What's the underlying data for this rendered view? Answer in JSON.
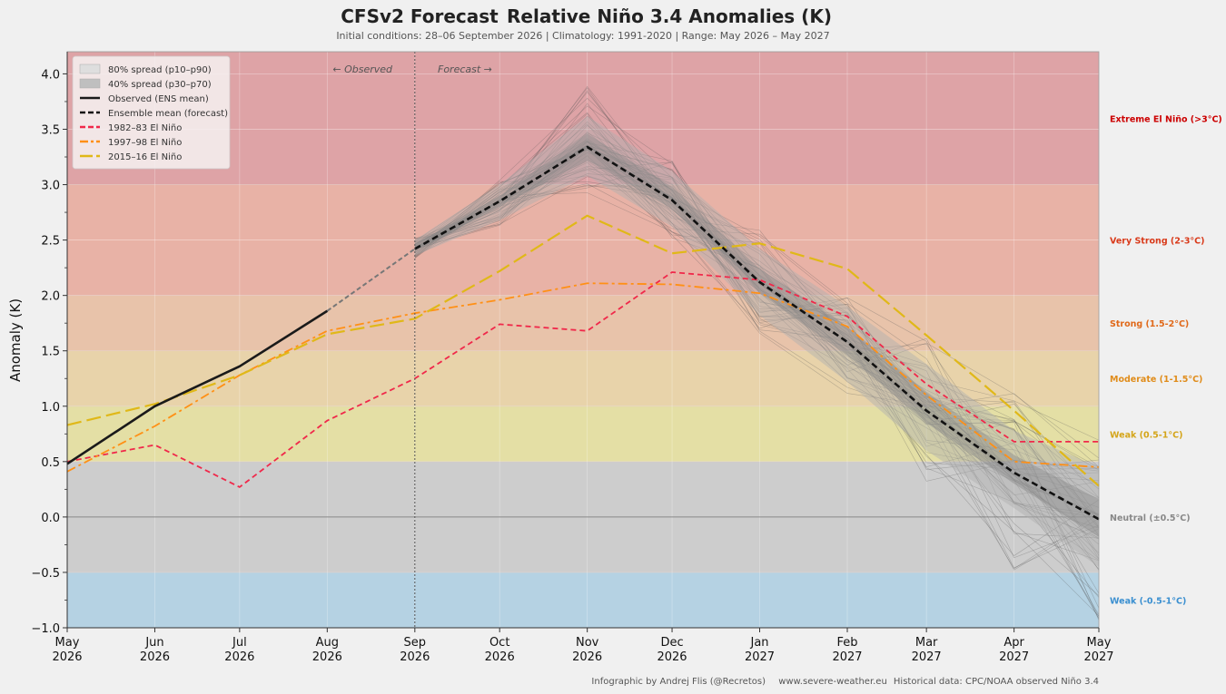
{
  "header": {
    "title_left": "CFSv2 Forecast",
    "title_right": "Relative Niño 3.4 Anomalies (K)",
    "subtitle": "Initial conditions: 28–06 September 2026  |  Climatology: 1991-2020  |  Range: May 2026 – May 2027"
  },
  "footer": {
    "credit": "Infographic by Andrej Flis (@Recretos)",
    "site": "www.severe-weather.eu",
    "source": "Historical data: CPC/NOAA observed Niño 3.4"
  },
  "annotations": {
    "observed": "← Observed",
    "forecast": "Forecast →"
  },
  "chart_data": {
    "type": "line",
    "ylabel": "Anomaly (K)",
    "ylim": [
      -1.0,
      4.2
    ],
    "y_ticks": [
      -1.0,
      -0.5,
      0.0,
      0.5,
      1.0,
      1.5,
      2.0,
      2.5,
      3.0,
      3.5,
      4.0
    ],
    "y_tick_labels": [
      "−1.0",
      "−0.5",
      "0.0",
      "0.5",
      "1.0",
      "1.5",
      "2.0",
      "2.5",
      "3.0",
      "3.5",
      "4.0"
    ],
    "x_ticks": [
      {
        "month": "May",
        "year": "2026"
      },
      {
        "month": "Jun",
        "year": "2026"
      },
      {
        "month": "Jul",
        "year": "2026"
      },
      {
        "month": "Aug",
        "year": "2026"
      },
      {
        "month": "Sep",
        "year": "2026"
      },
      {
        "month": "Oct",
        "year": "2026"
      },
      {
        "month": "Nov",
        "year": "2026"
      },
      {
        "month": "Dec",
        "year": "2026"
      },
      {
        "month": "Jan",
        "year": "2027"
      },
      {
        "month": "Feb",
        "year": "2027"
      },
      {
        "month": "Mar",
        "year": "2027"
      },
      {
        "month": "Apr",
        "year": "2027"
      },
      {
        "month": "May",
        "year": "2027"
      }
    ],
    "x_day_offsets": [
      0,
      31,
      61,
      92,
      123,
      153,
      184,
      214,
      245,
      276,
      304,
      335,
      365
    ],
    "forecast_start_index": 4,
    "grid": true,
    "legend_position": "top-left",
    "bands": [
      {
        "label": "Extreme El Niño (>3°C)",
        "from": 3.0,
        "to": 4.2,
        "fill": "#dea3a6",
        "text_color": "#cc0000"
      },
      {
        "label": "Very Strong (2-3°C)",
        "from": 2.0,
        "to": 3.0,
        "fill": "#e8b2a6",
        "text_color": "#d93a1a"
      },
      {
        "label": "Strong (1.5-2°C)",
        "from": 1.5,
        "to": 2.0,
        "fill": "#e8c3aa",
        "text_color": "#e0691a"
      },
      {
        "label": "Moderate (1-1.5°C)",
        "from": 1.0,
        "to": 1.5,
        "fill": "#e8d3aa",
        "text_color": "#e08c1a"
      },
      {
        "label": "Weak (0.5-1°C)",
        "from": 0.5,
        "to": 1.0,
        "fill": "#e4dfa5",
        "text_color": "#d4a51a"
      },
      {
        "label": "Neutral (±0.5°C)",
        "from": -0.5,
        "to": 0.5,
        "fill": "#cdcdcd",
        "text_color": "#888888"
      },
      {
        "label": "Weak (-0.5-1°C)",
        "from": -1.0,
        "to": -0.5,
        "fill": "#b5d2e3",
        "text_color": "#3a8fd0"
      }
    ],
    "legend": [
      {
        "label": "80% spread (p10–p90)",
        "kind": "patch",
        "color": "#dedede"
      },
      {
        "label": "40% spread (p30–p70)",
        "kind": "patch",
        "color": "#bfbfbf"
      },
      {
        "label": "Observed (ENS mean)",
        "kind": "solid",
        "color": "#1a1a1a"
      },
      {
        "label": "Ensemble mean (forecast)",
        "kind": "dashed",
        "color": "#111111"
      },
      {
        "label": "1982–83 El Niño",
        "kind": "dashed",
        "color": "#f0284a"
      },
      {
        "label": "1997–98 El Niño",
        "kind": "dashdot",
        "color": "#ff9016"
      },
      {
        "label": "2015–16 El Niño",
        "kind": "longdash",
        "color": "#e0b818"
      }
    ],
    "series": [
      {
        "name": "Observed (ENS mean)",
        "x_index": [
          0,
          1,
          2,
          3
        ],
        "values": [
          0.48,
          1.0,
          1.36,
          1.86
        ],
        "color": "#1a1a1a"
      },
      {
        "name": "Ensemble mean (forecast)",
        "x_index": [
          4,
          5,
          6,
          7,
          8,
          9,
          10,
          11,
          12
        ],
        "values": [
          2.42,
          2.85,
          3.34,
          2.86,
          2.12,
          1.58,
          0.96,
          0.4,
          -0.02
        ],
        "color": "#111111"
      },
      {
        "name": "1982–83 El Niño",
        "x_index": [
          0,
          1,
          2,
          3,
          4,
          5,
          6,
          7,
          8,
          9,
          10,
          11,
          12
        ],
        "values": [
          0.5,
          0.65,
          0.27,
          0.87,
          1.25,
          1.74,
          1.68,
          2.21,
          2.14,
          1.81,
          1.2,
          0.68,
          0.68
        ],
        "color": "#f0284a"
      },
      {
        "name": "1997–98 El Niño",
        "x_index": [
          0,
          1,
          2,
          3,
          4,
          5,
          6,
          7,
          8,
          9,
          10,
          11,
          12
        ],
        "values": [
          0.41,
          0.82,
          1.28,
          1.68,
          1.84,
          1.96,
          2.11,
          2.1,
          2.02,
          1.72,
          1.1,
          0.5,
          0.45
        ],
        "color": "#ff9016"
      },
      {
        "name": "2015–16 El Niño",
        "x_index": [
          0,
          1,
          2,
          3,
          4,
          5,
          6,
          7,
          8,
          9,
          10,
          11,
          12
        ],
        "values": [
          0.83,
          1.02,
          1.28,
          1.65,
          1.79,
          2.22,
          2.72,
          2.38,
          2.47,
          2.24,
          1.64,
          0.96,
          0.28
        ],
        "color": "#e0b818"
      }
    ],
    "spread": {
      "x_index": [
        4,
        5,
        6,
        7,
        8,
        9,
        10,
        11,
        12
      ],
      "p10": [
        2.36,
        2.68,
        3.08,
        2.62,
        1.82,
        1.22,
        0.6,
        0.08,
        -0.45
      ],
      "p90": [
        2.5,
        3.0,
        3.62,
        3.12,
        2.42,
        1.9,
        1.38,
        0.78,
        0.45
      ],
      "p30": [
        2.4,
        2.8,
        3.22,
        2.78,
        2.02,
        1.46,
        0.85,
        0.3,
        -0.18
      ],
      "p70": [
        2.46,
        2.9,
        3.46,
        2.98,
        2.24,
        1.72,
        1.13,
        0.56,
        0.16
      ],
      "members_min": [
        2.33,
        2.62,
        2.92,
        2.5,
        1.65,
        1.1,
        0.3,
        -0.48,
        -1.0
      ],
      "members_max": [
        2.52,
        3.05,
        3.9,
        3.25,
        2.6,
        2.0,
        1.66,
        1.12,
        0.72
      ]
    }
  }
}
